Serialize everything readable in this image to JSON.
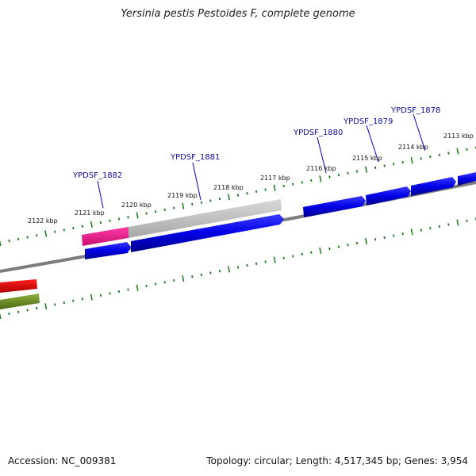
{
  "title": "Yersinia pestis Pestoides F, complete genome",
  "footer": {
    "accession": "Accession: NC_009381",
    "summary": "Topology: circular; Length: 4,517,345 bp; Genes: 3,954"
  },
  "scale_labels": [
    "2122 kbp",
    "2121 kbp",
    "2120 kbp",
    "2119 kbp",
    "2118 kbp",
    "2117 kbp",
    "2116 kbp",
    "2115 kbp",
    "2114 kbp",
    "2113 kbp"
  ],
  "gene_labels": [
    "YPDSF_1882",
    "YPDSF_1881",
    "YPDSF_1880",
    "YPDSF_1879",
    "YPDSF_1878"
  ],
  "colors": {
    "backbone": "#808080",
    "cds": "#0000e6",
    "gene_grey": "#bdbdbd",
    "gene_pink": "#e8188a",
    "feature_red": "#e60000",
    "feature_olive": "#6b8e23",
    "tick": "#1a7a1a",
    "label": "#0a0a9a"
  }
}
